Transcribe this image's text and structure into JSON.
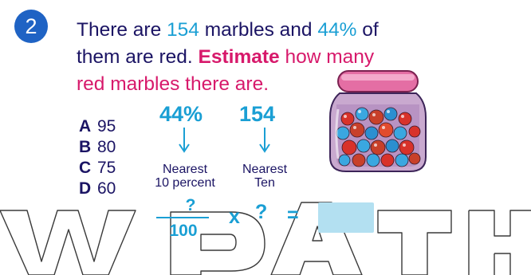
{
  "question_number": "2",
  "question": {
    "line1_pre": "There are ",
    "marbles_count": "154",
    "line1_mid": " marbles and ",
    "percent": "44%",
    "line1_post": " of",
    "line2_pre": "them are red. ",
    "estimate_word": "Estimate",
    "line2_post": " how many",
    "line3": "red marbles there are."
  },
  "choices": [
    {
      "letter": "A",
      "value": "95"
    },
    {
      "letter": "B",
      "value": "80"
    },
    {
      "letter": "C",
      "value": "75"
    },
    {
      "letter": "D",
      "value": "60"
    }
  ],
  "diagram": {
    "percent_value": "44%",
    "count_value": "154",
    "left_caption_line1": "Nearest",
    "left_caption_line2": "10 percent",
    "right_caption_line1": "Nearest",
    "right_caption_line2": "Ten",
    "fraction_numerator": "?",
    "fraction_denominator": "100",
    "times_sign": "x",
    "second_factor": "?",
    "equals_sign": "="
  },
  "watermark": "WPATH",
  "colors": {
    "badge": "#1f63c4",
    "text_dark": "#1b1464",
    "cyan": "#1a9fd4",
    "magenta": "#d7196b",
    "answer_box": "#b3e0f1"
  }
}
